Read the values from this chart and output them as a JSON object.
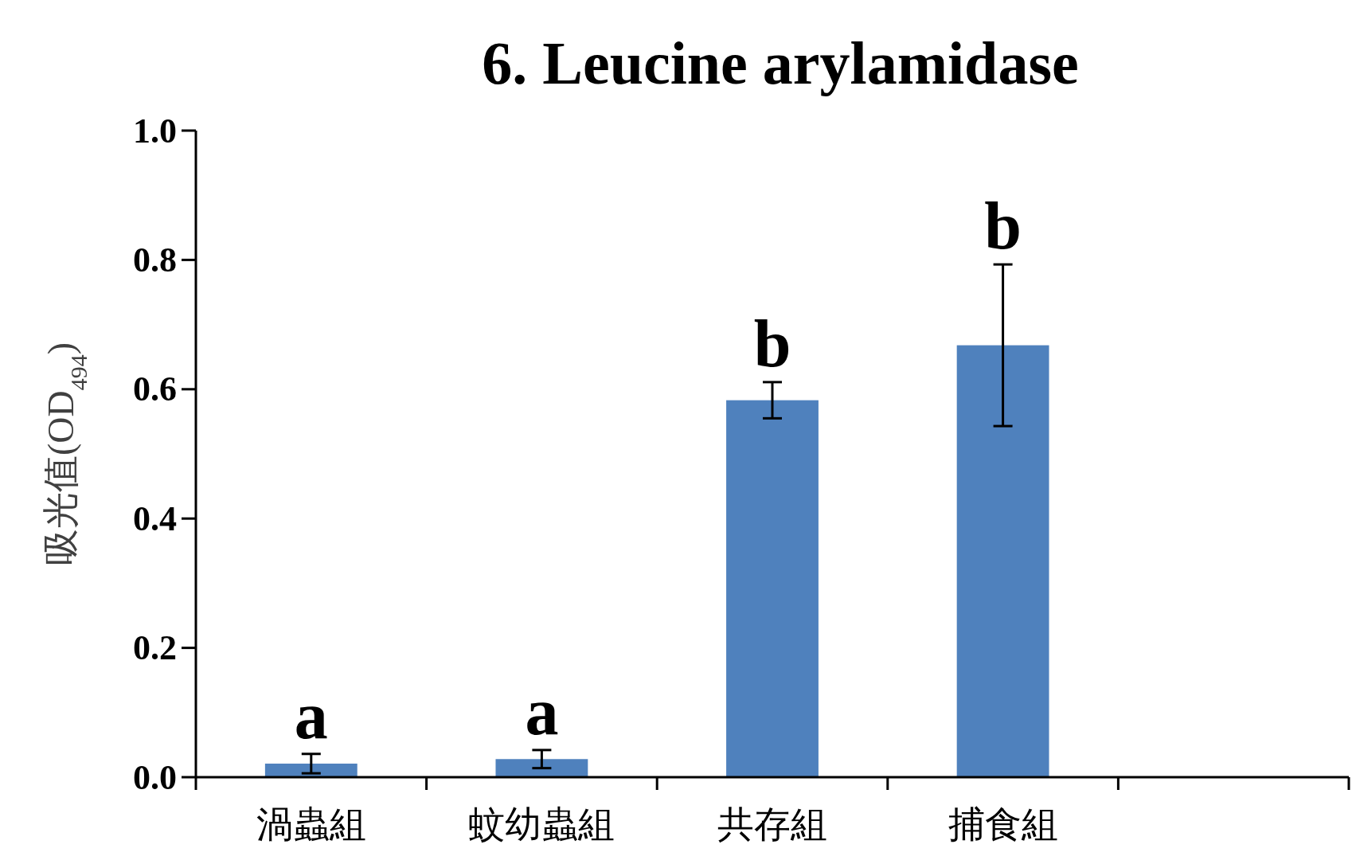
{
  "chart_data": {
    "type": "bar",
    "title": "6. Leucine arylamidase",
    "ylabel": "吸光值(OD$_{494}$)",
    "categories": [
      "渦蟲組",
      "蚊幼蟲組",
      "共存組",
      "捕食組",
      null
    ],
    "values": [
      0.021,
      0.028,
      0.583,
      0.668,
      null
    ],
    "errors": [
      0.015,
      0.014,
      0.028,
      0.125,
      null
    ],
    "color": "#4f81bd",
    "ylim": [
      0,
      1
    ],
    "yticks": [
      {
        "value": 0,
        "label": "0.0"
      },
      {
        "value": 0.2,
        "label": "0.2"
      },
      {
        "value": 0.4,
        "label": "0.4"
      },
      {
        "value": 0.6,
        "label": "0.6"
      },
      {
        "value": 0.8,
        "label": "0.8"
      },
      {
        "value": 1,
        "label": "1.0"
      }
    ],
    "annotations": [
      "a",
      "a",
      "b",
      "b"
    ]
  }
}
